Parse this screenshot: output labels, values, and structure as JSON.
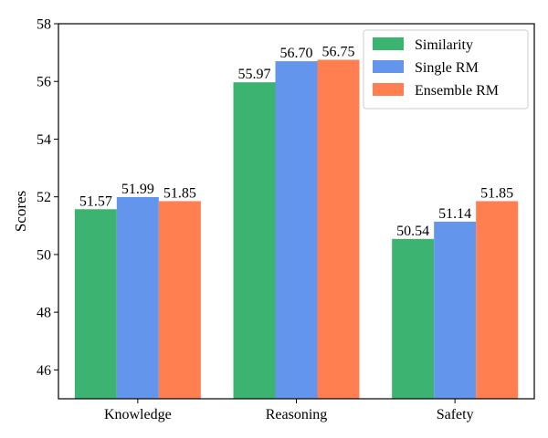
{
  "chart_data": {
    "type": "bar",
    "title": "",
    "xlabel": "",
    "ylabel": "Scores",
    "categories": [
      "Knowledge",
      "Reasoning",
      "Safety"
    ],
    "series": [
      {
        "name": "Similarity",
        "values": [
          51.57,
          55.97,
          50.54
        ],
        "color": "#3cb371"
      },
      {
        "name": "Single RM",
        "values": [
          51.99,
          56.7,
          51.14
        ],
        "color": "#6495ed"
      },
      {
        "name": "Ensemble RM",
        "values": [
          51.85,
          56.75,
          51.85
        ],
        "color": "#ff7f50"
      }
    ],
    "ylim": [
      45,
      58
    ],
    "yticks": [
      46,
      48,
      50,
      52,
      54,
      56,
      58
    ],
    "legend_position": "top-right",
    "grid": false,
    "value_labels": true
  }
}
